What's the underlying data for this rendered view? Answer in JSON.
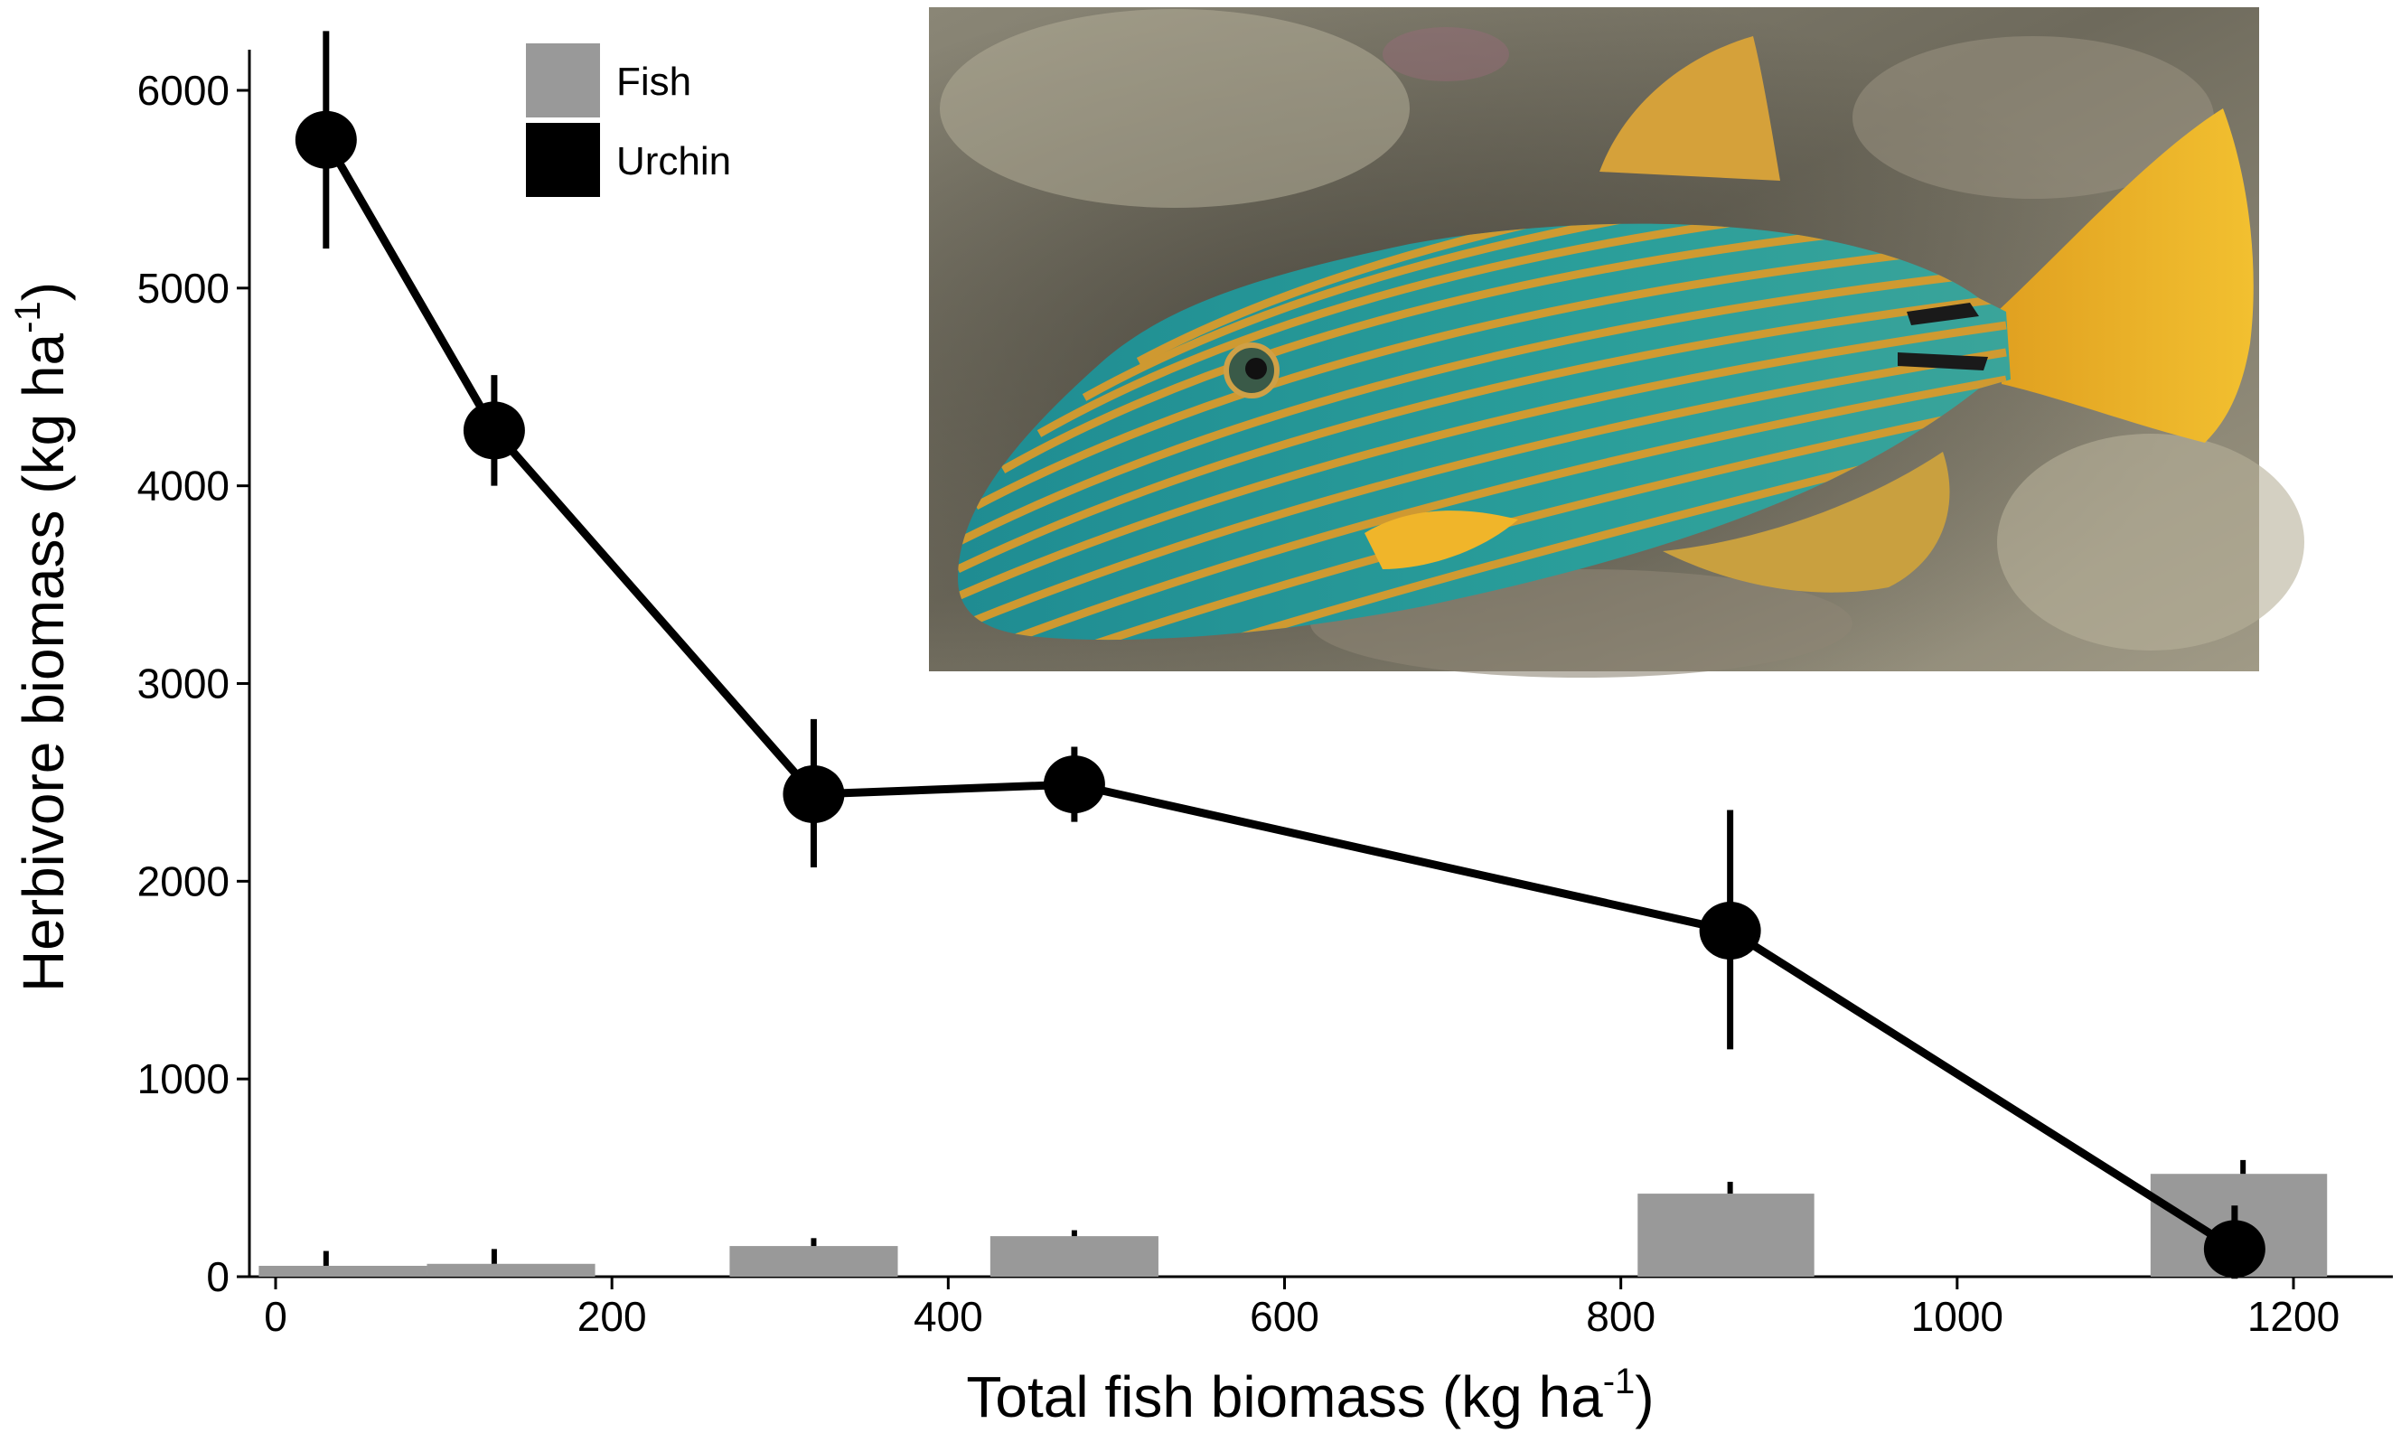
{
  "chart_data": {
    "type": "line",
    "xlabel": "Total fish biomass (kg ha",
    "xlabel_sup": "-1",
    "xlabel_end": ")",
    "ylabel": "Herbivore biomass (kg ha",
    "ylabel_sup": "-1",
    "ylabel_end": ")",
    "xlim": [
      -20,
      1260
    ],
    "ylim": [
      0,
      6200
    ],
    "x_ticks": [
      0,
      200,
      400,
      600,
      800,
      1000,
      1200
    ],
    "y_ticks": [
      0,
      1000,
      2000,
      3000,
      4000,
      5000,
      6000
    ],
    "grid": false,
    "legend_position": "top-left",
    "legend": [
      {
        "label": "Fish",
        "color": "#999999"
      },
      {
        "label": "Urchin",
        "color": "#000000"
      }
    ],
    "series": [
      {
        "name": "Urchin",
        "type": "line",
        "color": "#000000",
        "points": [
          {
            "x": 30,
            "y": 5750,
            "err_low": 5200,
            "err_high": 6300
          },
          {
            "x": 130,
            "y": 4280,
            "err_low": 4000,
            "err_high": 4560
          },
          {
            "x": 320,
            "y": 2440,
            "err_low": 2070,
            "err_high": 2820
          },
          {
            "x": 475,
            "y": 2490,
            "err_low": 2300,
            "err_high": 2680
          },
          {
            "x": 865,
            "y": 1750,
            "err_low": 1150,
            "err_high": 2360
          },
          {
            "x": 1165,
            "y": 140,
            "err_low": -10,
            "err_high": 360
          }
        ]
      },
      {
        "name": "Fish",
        "type": "bar",
        "color": "#999999",
        "bars": [
          {
            "x0": -10,
            "x1": 90,
            "y": 55,
            "err_x": 30,
            "err_high": 130
          },
          {
            "x0": 90,
            "x1": 190,
            "y": 65,
            "err_x": 130,
            "err_high": 140
          },
          {
            "x0": 270,
            "x1": 370,
            "y": 155,
            "err_x": 320,
            "err_high": 195
          },
          {
            "x0": 425,
            "x1": 525,
            "y": 205,
            "err_x": 475,
            "err_high": 235
          },
          {
            "x0": 810,
            "x1": 915,
            "y": 420,
            "err_x": 865,
            "err_high": 480
          },
          {
            "x0": 1115,
            "x1": 1220,
            "y": 520,
            "err_x": 1170,
            "err_high": 590
          }
        ]
      }
    ],
    "inset_photo": "orange-lined-triggerfish"
  }
}
